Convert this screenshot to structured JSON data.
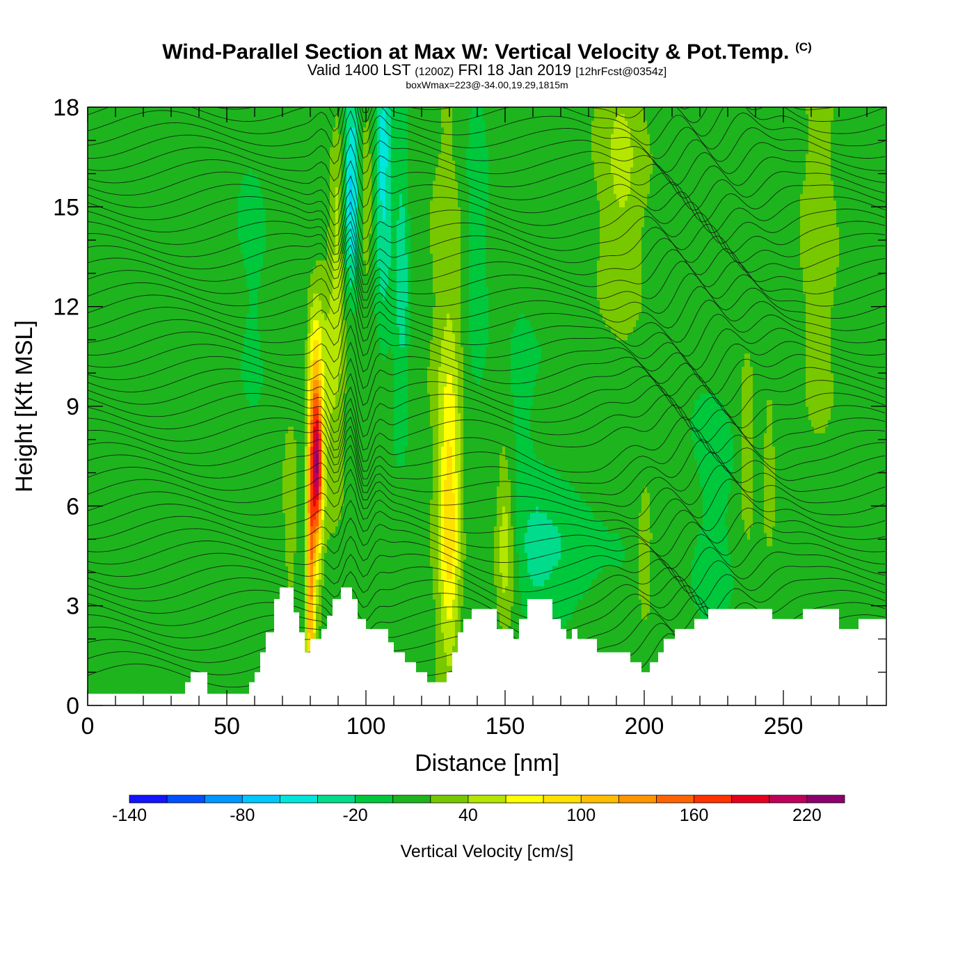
{
  "header": {
    "title": "Wind-Parallel Section at Max W: Vertical Velocity & Pot.Temp.",
    "copyright": "(C)",
    "valid_prefix": "Valid 1400 LST",
    "valid_utc": "(1200Z)",
    "valid_date": "FRI 18 Jan 2019",
    "forecast": "[12hrFcst@0354z]",
    "boxwmax": "boxWmax=223@-34.00,19.29,1815m"
  },
  "chart_data": {
    "type": "heatmap",
    "xlabel": "Distance [nm]",
    "ylabel": "Height [Kft MSL]",
    "xlim": [
      0,
      287
    ],
    "ylim": [
      0,
      18
    ],
    "x_ticks": [
      "0",
      "50",
      "100",
      "150",
      "200",
      "250"
    ],
    "y_ticks": [
      "0",
      "3",
      "6",
      "9",
      "12",
      "15",
      "18"
    ],
    "colorbar": {
      "label": "Vertical Velocity [cm/s]",
      "levels": [
        -140,
        -120,
        -100,
        -80,
        -60,
        -40,
        -20,
        0,
        20,
        40,
        60,
        80,
        100,
        120,
        140,
        160,
        180,
        200,
        220,
        240
      ],
      "tick_labels": [
        "-140",
        "-80",
        "-20",
        "40",
        "100",
        "160",
        "220"
      ],
      "colors": [
        "#1414ff",
        "#0050ff",
        "#0096ff",
        "#00c8ff",
        "#00e6dc",
        "#00dc8c",
        "#00c83c",
        "#1eb41e",
        "#78c800",
        "#b4e600",
        "#ffff00",
        "#ffe100",
        "#ffbe00",
        "#ff9600",
        "#ff6400",
        "#ff3200",
        "#e6001e",
        "#be005a",
        "#8c006e"
      ]
    },
    "terrain": [
      [
        0,
        0.35
      ],
      [
        35,
        0.35
      ],
      [
        35,
        0.7
      ],
      [
        37,
        0.7
      ],
      [
        37,
        1.0
      ],
      [
        43,
        1.0
      ],
      [
        43,
        0.35
      ],
      [
        58,
        0.35
      ],
      [
        58,
        0.7
      ],
      [
        60,
        0.7
      ],
      [
        60,
        1.0
      ],
      [
        62,
        1.0
      ],
      [
        62,
        1.6
      ],
      [
        64,
        1.6
      ],
      [
        64,
        2.2
      ],
      [
        67,
        2.2
      ],
      [
        67,
        3.2
      ],
      [
        69,
        3.2
      ],
      [
        69,
        3.55
      ],
      [
        74,
        3.55
      ],
      [
        74,
        2.8
      ],
      [
        76,
        2.8
      ],
      [
        76,
        2.2
      ],
      [
        78,
        2.2
      ],
      [
        78,
        1.6
      ],
      [
        80,
        1.6
      ],
      [
        80,
        2.0
      ],
      [
        84,
        2.0
      ],
      [
        84,
        2.3
      ],
      [
        86,
        2.3
      ],
      [
        86,
        2.7
      ],
      [
        88,
        2.7
      ],
      [
        88,
        3.2
      ],
      [
        91,
        3.2
      ],
      [
        91,
        3.55
      ],
      [
        95,
        3.55
      ],
      [
        95,
        3.2
      ],
      [
        97,
        3.2
      ],
      [
        97,
        2.6
      ],
      [
        100,
        2.6
      ],
      [
        100,
        2.3
      ],
      [
        108,
        2.3
      ],
      [
        108,
        1.9
      ],
      [
        110,
        1.9
      ],
      [
        110,
        1.6
      ],
      [
        114,
        1.6
      ],
      [
        114,
        1.3
      ],
      [
        118,
        1.3
      ],
      [
        118,
        1.0
      ],
      [
        122,
        1.0
      ],
      [
        122,
        0.7
      ],
      [
        129,
        0.7
      ],
      [
        129,
        1.0
      ],
      [
        131,
        1.0
      ],
      [
        131,
        1.6
      ],
      [
        133,
        1.6
      ],
      [
        133,
        2.2
      ],
      [
        135,
        2.2
      ],
      [
        135,
        2.6
      ],
      [
        138,
        2.6
      ],
      [
        138,
        2.9
      ],
      [
        147,
        2.9
      ],
      [
        147,
        2.3
      ],
      [
        153,
        2.3
      ],
      [
        153,
        2.0
      ],
      [
        155,
        2.0
      ],
      [
        155,
        2.6
      ],
      [
        158,
        2.6
      ],
      [
        158,
        3.2
      ],
      [
        167,
        3.2
      ],
      [
        167,
        2.6
      ],
      [
        170,
        2.6
      ],
      [
        170,
        2.3
      ],
      [
        172,
        2.3
      ],
      [
        172,
        2.0
      ],
      [
        174,
        2.0
      ],
      [
        174,
        2.3
      ],
      [
        176,
        2.3
      ],
      [
        176,
        2.0
      ],
      [
        183,
        2.0
      ],
      [
        183,
        1.6
      ],
      [
        195,
        1.6
      ],
      [
        195,
        1.3
      ],
      [
        199,
        1.3
      ],
      [
        199,
        1.0
      ],
      [
        202,
        1.0
      ],
      [
        202,
        1.3
      ],
      [
        205,
        1.3
      ],
      [
        205,
        1.6
      ],
      [
        207,
        1.6
      ],
      [
        207,
        2.0
      ],
      [
        211,
        2.0
      ],
      [
        211,
        2.3
      ],
      [
        218,
        2.3
      ],
      [
        218,
        2.6
      ],
      [
        223,
        2.6
      ],
      [
        223,
        2.9
      ],
      [
        246,
        2.9
      ],
      [
        246,
        2.6
      ],
      [
        257,
        2.6
      ],
      [
        257,
        2.9
      ],
      [
        270,
        2.9
      ],
      [
        270,
        2.3
      ],
      [
        277,
        2.3
      ],
      [
        277,
        2.6
      ],
      [
        287,
        2.6
      ]
    ]
  }
}
